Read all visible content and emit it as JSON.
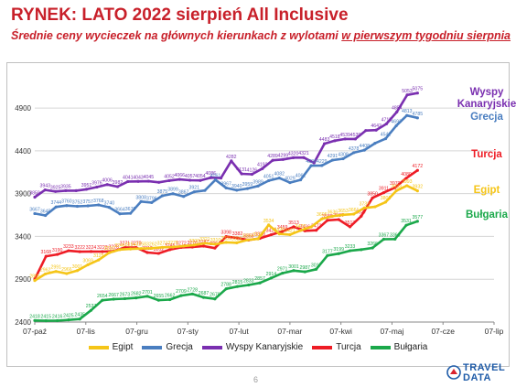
{
  "header": {
    "title": "RYNEK: LATO 2022 sierpień All Inclusive",
    "subtitle_prefix": "Średnie ceny wycieczek na głównych kierunkach z wylotami ",
    "subtitle_underlined": "w pierwszym tygodniu sierpnia"
  },
  "footer": {
    "page_number": "6",
    "logo_line1": "TRAVEL",
    "logo_line2": "DATA"
  },
  "colors": {
    "Egipt": "#f5c518",
    "Grecja": "#4a7ec0",
    "Wyspy Kanaryjskie": "#7a2fb0",
    "Turcja": "#ee1c25",
    "Bułgaria": "#1aa84a"
  },
  "chart_data": {
    "type": "line",
    "xlabels": [
      "07-paź",
      "07-lis",
      "07-gru",
      "07-sty",
      "07-lut",
      "07-mar",
      "07-kwi",
      "07-maj",
      "07-cze",
      "07-lip"
    ],
    "yticks": [
      2400,
      2900,
      3400,
      3900,
      4400,
      4900
    ],
    "ylim": [
      2400,
      5200
    ],
    "grid": true,
    "legend_position": "bottom",
    "end_labels": [
      {
        "series": "Wyspy Kanaryjskie",
        "lines": [
          "Wyspy",
          "Kanaryjskie"
        ]
      },
      {
        "series": "Grecja",
        "lines": [
          "Grecja"
        ]
      },
      {
        "series": "Turcja",
        "lines": [
          "Turcja"
        ]
      },
      {
        "series": "Egipt",
        "lines": [
          "Egipt"
        ]
      },
      {
        "series": "Bułgaria",
        "lines": [
          "Bułgaria"
        ]
      }
    ],
    "series": [
      {
        "name": "Wyspy Kanaryjskie",
        "values": [
          3859,
          3943,
          3925,
          3935,
          3935,
          3951,
          3976,
          4006,
          3982,
          4041,
          4043,
          4045,
          4032,
          4052,
          4066,
          4057,
          4054,
          4086,
          4082,
          4282,
          4131,
          4126,
          4192,
          4289,
          4299,
          4320,
          4321,
          4260,
          4483,
          4518,
          4539,
          4539,
          4637,
          4642,
          4715,
          4854,
          5053,
          5075
        ],
        "labels": [
          "3859",
          "3943",
          "3925",
          "3935",
          "",
          "3951",
          "3976",
          "4006",
          "3982",
          "4041",
          "4043",
          "4045",
          "",
          "4052",
          "4066",
          "4057",
          "4054",
          "4086",
          "",
          "4282",
          "4131",
          "4126",
          "4192",
          "4289",
          "4299",
          "4320",
          "4321",
          "",
          "4483",
          "4518",
          "4539",
          "4539",
          "",
          "4642",
          "4715",
          "4854",
          "5053",
          "5075"
        ]
      },
      {
        "name": "Grecja",
        "values": [
          3667,
          3645,
          3744,
          3760,
          3752,
          3757,
          3768,
          3740,
          3664,
          3670,
          3808,
          3796,
          3875,
          3899,
          3867,
          3921,
          3937,
          4061,
          3967,
          3940,
          3959,
          3989,
          4051,
          4082,
          4029,
          4061,
          4226,
          4229,
          4291,
          4308,
          4378,
          4408,
          4488,
          4542,
          4693,
          4813,
          4785
        ],
        "labels": [
          "3667",
          "3645",
          "3744",
          "3760",
          "3752",
          "3757",
          "3768",
          "3740",
          "3664",
          "3670",
          "3808",
          "3796",
          "3875",
          "3899",
          "3867",
          "3921",
          "",
          "4061",
          "3967",
          "3940",
          "3959",
          "3989",
          "4051",
          "4082",
          "4029",
          "4061",
          "4226",
          "4229",
          "4291",
          "4308",
          "4378",
          "4408",
          "",
          "4542",
          "4693",
          "4813",
          "4785"
        ]
      },
      {
        "name": "Turcja",
        "values": [
          2900,
          3168,
          3190,
          3233,
          3222,
          3224,
          3223,
          3228,
          3271,
          3270,
          3212,
          3202,
          3245,
          3272,
          3276,
          3287,
          3264,
          3398,
          3382,
          3358,
          3378,
          3420,
          3459,
          3513,
          3466,
          3472,
          3588,
          3597,
          3513,
          3637,
          3850,
          3911,
          3970,
          4080,
          4172
        ],
        "labels": [
          "",
          "3168",
          "3190",
          "3233",
          "3222",
          "3224",
          "3223",
          "3228",
          "3271",
          "3270",
          "3212",
          "3202",
          "3245",
          "3272",
          "3276",
          "3287",
          "3264",
          "3398",
          "3382",
          "3358",
          "3378",
          "3420",
          "3459",
          "3513",
          "3466",
          "3472",
          "3588",
          "3597",
          "3513",
          "3637",
          "3850",
          "3911",
          "3970",
          "4080",
          "4172"
        ]
      },
      {
        "name": "Egipt",
        "values": [
          2885,
          2962,
          2991,
          2966,
          3001,
          3069,
          3125,
          3210,
          3246,
          3254,
          3258,
          3262,
          3273,
          3276,
          3288,
          3300,
          3321,
          3310,
          3331,
          3326,
          3359,
          3371,
          3534,
          3430,
          3421,
          3470,
          3511,
          3605,
          3636,
          3653,
          3661,
          3733,
          3746,
          3801,
          3933,
          3993,
          3932
        ],
        "labels": [
          "2885",
          "2962",
          "2991",
          "2966",
          "3001",
          "3069",
          "3125",
          "3210",
          "3246",
          "3254",
          "3258",
          "3262",
          "3273",
          "3276",
          "",
          "3300",
          "3321",
          "3310",
          "3331",
          "3326",
          "3359",
          "3371",
          "3534",
          "3430",
          "3421",
          "3470",
          "",
          "3605",
          "3636",
          "3653",
          "3661",
          "3733",
          "",
          "3801",
          "3933",
          "3993",
          "3932"
        ]
      },
      {
        "name": "Bułgaria",
        "values": [
          2418,
          2415,
          2416,
          2425,
          2435,
          2537,
          2654,
          2667,
          2673,
          2682,
          2701,
          2655,
          2662,
          2709,
          2728,
          2687,
          2670,
          2788,
          2815,
          2833,
          2857,
          2914,
          2971,
          3001,
          2987,
          3017,
          3177,
          3199,
          3233,
          3246,
          3266,
          3367,
          3369,
          3531,
          3577
        ],
        "labels": [
          "2418",
          "2415",
          "2416",
          "2425",
          "2435",
          "2537",
          "2654",
          "2667",
          "2673",
          "2682",
          "2701",
          "2655",
          "2662",
          "2709",
          "2728",
          "2687",
          "2670",
          "2788",
          "2815",
          "2833",
          "2857",
          "2914",
          "2971",
          "3001",
          "2987",
          "3017",
          "3177",
          "3199",
          "3233",
          "",
          "3266",
          "3367",
          "3369",
          "3531",
          "3577"
        ]
      }
    ]
  }
}
